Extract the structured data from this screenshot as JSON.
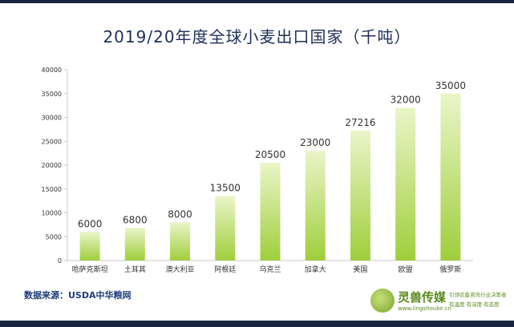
{
  "title": "2019/20年度全球小麦出口国家（千吨）",
  "source_text": "数据来源：USDA中华粮网",
  "logo": {
    "name": "灵兽传媒",
    "url": "www.lingshouke.cn",
    "slogan": "引领农畜资讯行业决策者",
    "tagline": "有温度·有深度·有态度"
  },
  "colors": {
    "bar_top": "#eaf5c8",
    "bar_bottom": "#9fce3c",
    "title": "#1f2f59",
    "axis": "#c9c9c9",
    "text": "#333333"
  },
  "chart_data": {
    "type": "bar",
    "title": "2019/20年度全球小麦出口国家（千吨）",
    "categories": [
      "哈萨克斯坦",
      "土耳其",
      "澳大利亚",
      "阿根廷",
      "乌克兰",
      "加拿大",
      "美国",
      "欧盟",
      "俄罗斯"
    ],
    "values": [
      6000,
      6800,
      8000,
      13500,
      20500,
      23000,
      27216,
      32000,
      35000
    ],
    "ylim": [
      0,
      40000
    ],
    "yticks": [
      0,
      5000,
      10000,
      15000,
      20000,
      25000,
      30000,
      35000,
      40000
    ],
    "xlabel": "",
    "ylabel": "",
    "grid": false,
    "data_labels": true
  }
}
